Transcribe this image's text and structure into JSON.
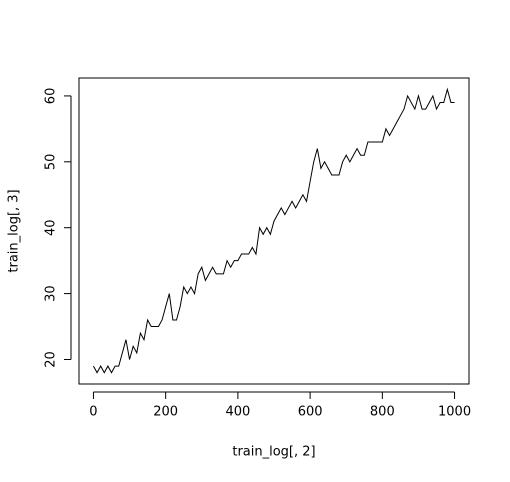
{
  "chart_data": {
    "type": "line",
    "xlabel": "train_log[, 2]",
    "ylabel": "train_log[, 3]",
    "x": [
      0,
      10,
      20,
      30,
      40,
      50,
      60,
      70,
      80,
      90,
      100,
      110,
      120,
      130,
      140,
      150,
      160,
      170,
      180,
      190,
      200,
      210,
      220,
      230,
      240,
      250,
      260,
      270,
      280,
      290,
      300,
      310,
      320,
      330,
      340,
      350,
      360,
      370,
      380,
      390,
      400,
      410,
      420,
      430,
      440,
      450,
      460,
      470,
      480,
      490,
      500,
      510,
      520,
      530,
      540,
      550,
      560,
      570,
      580,
      590,
      600,
      610,
      620,
      630,
      640,
      650,
      660,
      670,
      680,
      690,
      700,
      710,
      720,
      730,
      740,
      750,
      760,
      770,
      780,
      790,
      800,
      810,
      820,
      830,
      840,
      850,
      860,
      870,
      880,
      890,
      900,
      910,
      920,
      930,
      940,
      950,
      960,
      970,
      980,
      990,
      1000
    ],
    "series": [
      {
        "name": "train_log[, 3]",
        "color": "#000000",
        "values": [
          19,
          18,
          19,
          18,
          19,
          18,
          19,
          19,
          21,
          23,
          20,
          22,
          21,
          24,
          23,
          26,
          25,
          25,
          25,
          26,
          28,
          30,
          26,
          26,
          28,
          31,
          30,
          31,
          30,
          33,
          34,
          32,
          33,
          34,
          33,
          33,
          33,
          35,
          34,
          35,
          35,
          36,
          36,
          36,
          37,
          36,
          40,
          39,
          40,
          39,
          41,
          42,
          43,
          42,
          43,
          44,
          43,
          44,
          45,
          44,
          47,
          50,
          52,
          49,
          50,
          49,
          48,
          48,
          48,
          50,
          51,
          50,
          51,
          52,
          51,
          51,
          53,
          53,
          53,
          53,
          53,
          55,
          54,
          55,
          56,
          57,
          58,
          60,
          59,
          58,
          60,
          58,
          58,
          59,
          60,
          58,
          59,
          59,
          61,
          59,
          59
        ]
      }
    ],
    "xlim": [
      -40,
      1040
    ],
    "ylim": [
      16.28,
      62.72
    ],
    "xticks": [
      0,
      200,
      400,
      600,
      800,
      1000
    ],
    "yticks": [
      20,
      30,
      40,
      50,
      60
    ]
  }
}
